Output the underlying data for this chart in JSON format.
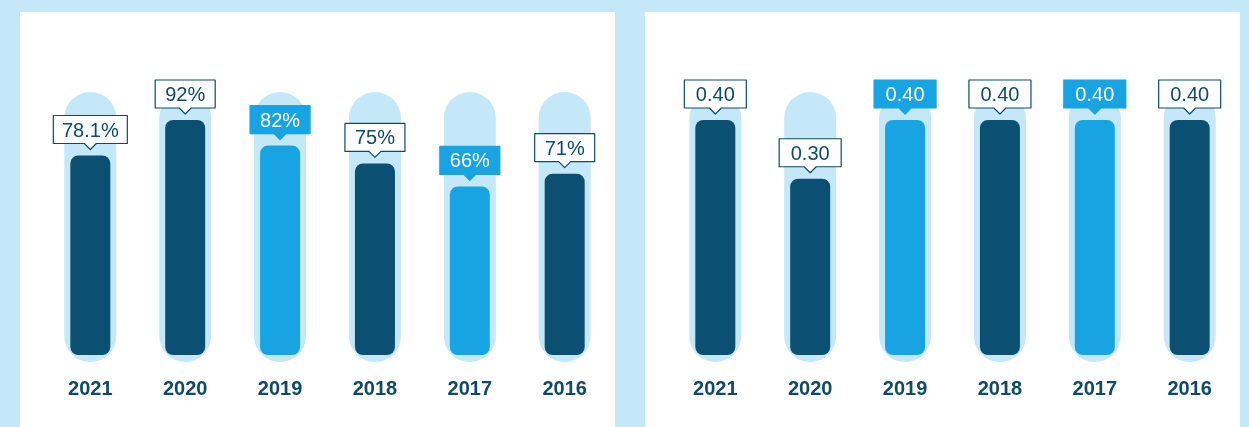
{
  "chart_data": [
    {
      "type": "bar",
      "categories": [
        "2021",
        "2020",
        "2019",
        "2018",
        "2017",
        "2016"
      ],
      "values": [
        78.1,
        92,
        82,
        75,
        66,
        71
      ],
      "value_labels": [
        "78.1%",
        "92%",
        "82%",
        "75%",
        "66%",
        "71%"
      ],
      "colors": [
        "#0b4f72",
        "#0b4f72",
        "#18a3e3",
        "#0b4f72",
        "#18a3e3",
        "#0b4f72"
      ]
    },
    {
      "type": "bar",
      "categories": [
        "2021",
        "2020",
        "2019",
        "2018",
        "2017",
        "2016"
      ],
      "values": [
        0.4,
        0.3,
        0.4,
        0.4,
        0.4,
        0.4
      ],
      "value_labels": [
        "0.40",
        "0.30",
        "0.40",
        "0.40",
        "0.40",
        "0.40"
      ],
      "colors": [
        "#0b4f72",
        "#0b4f72",
        "#18a3e3",
        "#0b4f72",
        "#18a3e3",
        "#0b4f72"
      ]
    }
  ]
}
